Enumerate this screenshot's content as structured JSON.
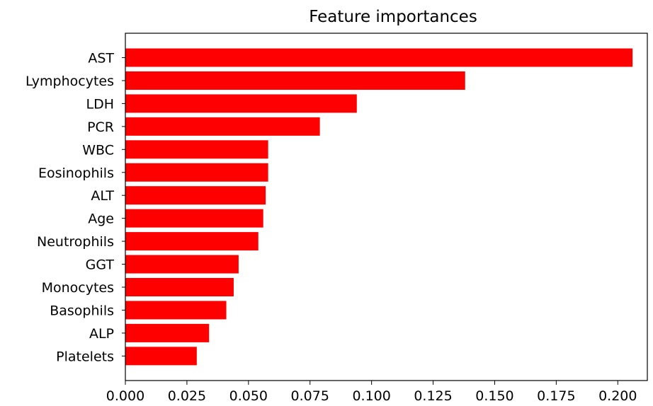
{
  "chart_data": {
    "type": "bar",
    "orientation": "horizontal",
    "title": "Feature importances",
    "xlabel": "",
    "ylabel": "",
    "categories": [
      "AST",
      "Lymphocytes",
      "LDH",
      "PCR",
      "WBC",
      "Eosinophils",
      "ALT",
      "Age",
      "Neutrophils",
      "GGT",
      "Monocytes",
      "Basophils",
      "ALP",
      "Platelets"
    ],
    "values": [
      0.206,
      0.138,
      0.094,
      0.079,
      0.058,
      0.058,
      0.057,
      0.056,
      0.054,
      0.046,
      0.044,
      0.041,
      0.034,
      0.029
    ],
    "xlim": [
      0.0,
      0.212
    ],
    "xticks": [
      0.0,
      0.025,
      0.05,
      0.075,
      0.1,
      0.125,
      0.15,
      0.175,
      0.2
    ],
    "xtick_labels": [
      "0.000",
      "0.025",
      "0.050",
      "0.075",
      "0.100",
      "0.125",
      "0.150",
      "0.175",
      "0.200"
    ],
    "bar_color": "#ff0000",
    "grid": false,
    "legend": "none"
  }
}
